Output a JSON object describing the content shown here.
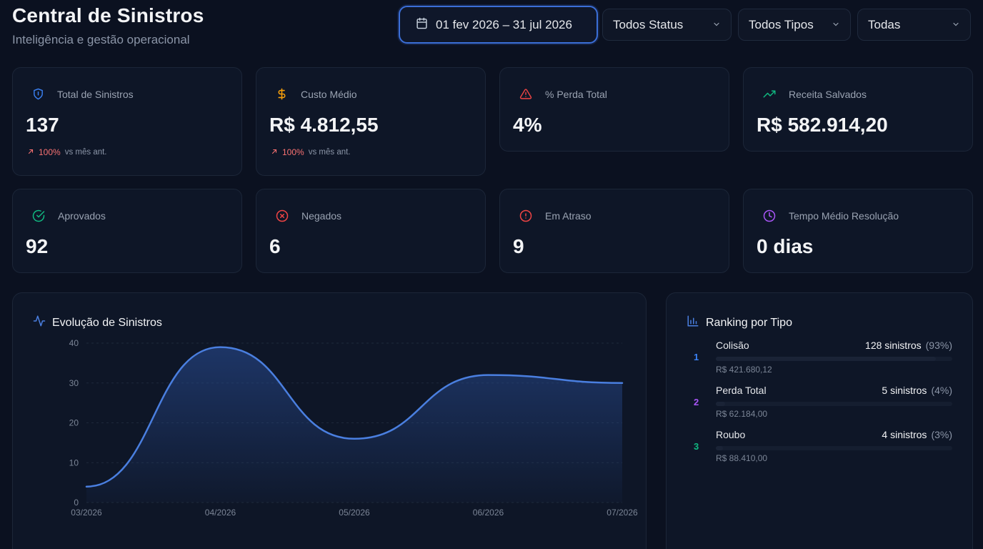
{
  "header": {
    "title": "Central de Sinistros",
    "subtitle": "Inteligência e gestão operacional"
  },
  "filters": {
    "date_range": "01 fev 2026 – 31 jul 2026",
    "status": "Todos Status",
    "tipos": "Todos Tipos",
    "todas": "Todas"
  },
  "kpis": [
    {
      "label": "Total de Sinistros",
      "value": "137",
      "delta_pct": "100%",
      "delta_text": "vs mês ant.",
      "icon": "shield-icon",
      "color": "#3b82f6"
    },
    {
      "label": "Custo Médio",
      "value": "R$ 4.812,55",
      "delta_pct": "100%",
      "delta_text": "vs mês ant.",
      "icon": "dollar-icon",
      "color": "#f59e0b"
    },
    {
      "label": "% Perda Total",
      "value": "4%",
      "icon": "warning-icon",
      "color": "#ef4444"
    },
    {
      "label": "Receita Salvados",
      "value": "R$ 582.914,20",
      "icon": "trending-up-icon",
      "color": "#10b981"
    },
    {
      "label": "Aprovados",
      "value": "92",
      "icon": "check-circle-icon",
      "color": "#10b981"
    },
    {
      "label": "Negados",
      "value": "6",
      "icon": "x-circle-icon",
      "color": "#ef4444"
    },
    {
      "label": "Em Atraso",
      "value": "9",
      "icon": "alert-circle-icon",
      "color": "#ef4444"
    },
    {
      "label": "Tempo Médio Resolução",
      "value": "0 dias",
      "icon": "clock-icon",
      "color": "#a855f7"
    }
  ],
  "evolution": {
    "title": "Evolução de Sinistros",
    "icon": "activity-icon"
  },
  "chart_data": {
    "type": "area",
    "x": [
      "03/2026",
      "04/2026",
      "05/2026",
      "06/2026",
      "07/2026"
    ],
    "series": [
      {
        "values": [
          4,
          39,
          16,
          32,
          30
        ]
      }
    ],
    "ylim": [
      0,
      40
    ],
    "yticks": [
      "0",
      "10",
      "20",
      "30",
      "40"
    ],
    "grid": true,
    "color": "#4a7fe0"
  },
  "ranking": {
    "title": "Ranking por Tipo",
    "icon": "bar-chart-icon",
    "items": [
      {
        "rank": "1",
        "name": "Colisão",
        "count": "128 sinistros",
        "pct": "(93%)",
        "cost": "R$ 421.680,12",
        "share": 0.93,
        "color": "#3b82f6"
      },
      {
        "rank": "2",
        "name": "Perda Total",
        "count": "5 sinistros",
        "pct": "(4%)",
        "cost": "R$ 62.184,00",
        "share": 0.04,
        "color": "#a855f7"
      },
      {
        "rank": "3",
        "name": "Roubo",
        "count": "4 sinistros",
        "pct": "(3%)",
        "cost": "R$ 88.410,00",
        "share": 0.03,
        "color": "#10b981"
      }
    ]
  }
}
